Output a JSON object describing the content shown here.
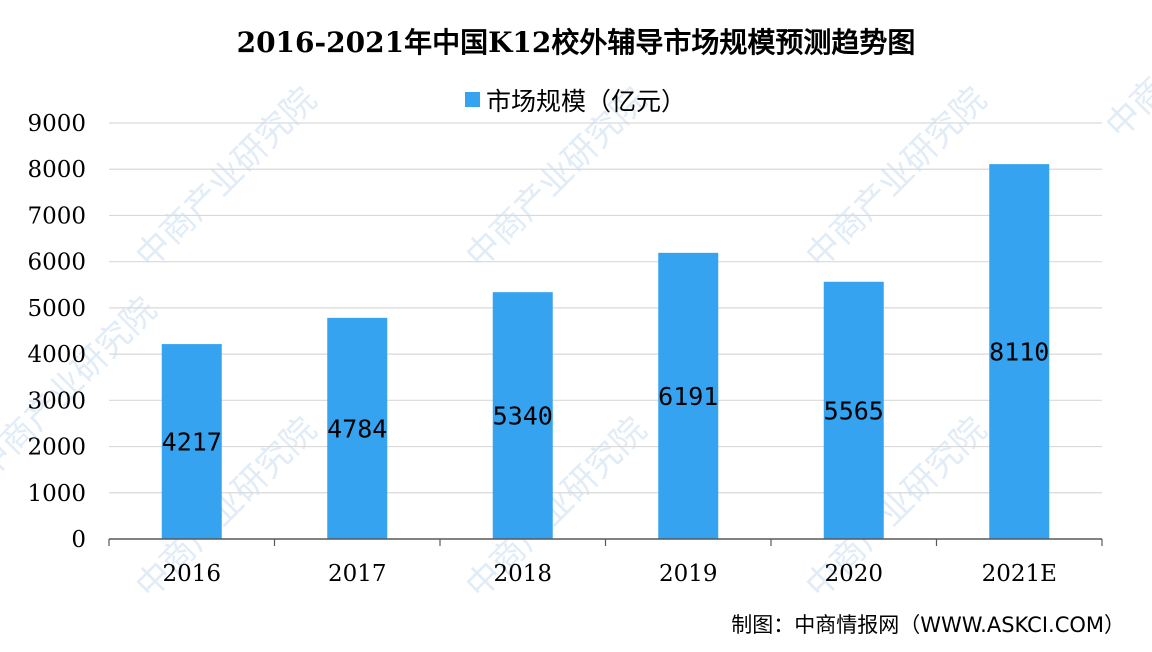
{
  "chart_data": {
    "type": "bar",
    "title": "2016-2021年中国K12校外辅导市场规模预测趋势图",
    "categories": [
      "2016",
      "2017",
      "2018",
      "2019",
      "2020",
      "2021E"
    ],
    "series": [
      {
        "name": "市场规模（亿元）",
        "values": [
          4217,
          4784,
          5340,
          6191,
          5565,
          8110
        ],
        "color": "#35a3f0"
      }
    ],
    "data_labels": [
      "4217",
      "4784",
      "5340",
      "6191",
      "5565",
      "8110"
    ],
    "ylim": [
      0,
      9000
    ],
    "yticks": [
      0,
      1000,
      2000,
      3000,
      4000,
      5000,
      6000,
      7000,
      8000,
      9000
    ],
    "grid": true,
    "legend_position": "top-center"
  },
  "source_text": "制图：中商情报网（WWW.ASKCI.COM）",
  "watermark_text": "中商产业研究院",
  "colors": {
    "bar": "#35a3f0",
    "grid": "#d9d9d9",
    "axis": "#595959"
  }
}
